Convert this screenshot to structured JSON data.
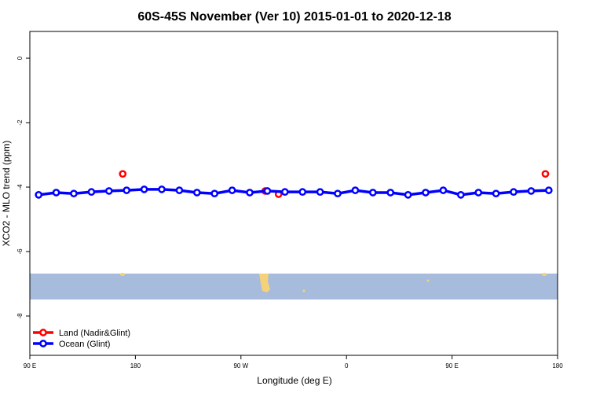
{
  "chart_data": {
    "type": "scatter-line",
    "title": "60S-45S November (Ver 10)   2015-01-01 to 2020-12-18",
    "xlabel": "Longitude (deg E)",
    "ylabel": "XCO2 - MLO trend (ppm)",
    "xlim": [
      90,
      540
    ],
    "ylim": [
      -9.22,
      0.83
    ],
    "xticks": [
      {
        "value": 90,
        "label": "90 E"
      },
      180,
      {
        "value": 270,
        "label": "90 W"
      },
      {
        "value": 360,
        "label": "0"
      },
      {
        "value": 450,
        "label": "90 E"
      },
      {
        "value": 540,
        "label": "180"
      }
    ],
    "yticks": [
      0,
      -2,
      -4,
      -6,
      -8
    ],
    "legend": "bottom-left",
    "series": [
      {
        "name": "Land (Nadir&Glint)",
        "color": "#ff0000",
        "connected": false,
        "x": [
          169.2,
          290.7,
          302.1,
          529.6
        ],
        "values": [
          -3.59,
          -4.12,
          -4.22,
          -3.59
        ]
      },
      {
        "name": "Ocean (Glint)",
        "color": "#0000ff",
        "connected": true,
        "x": [
          97.5,
          112.5,
          127.5,
          142.5,
          157.5,
          172.5,
          187.5,
          202.5,
          217.5,
          232.5,
          247.5,
          262.5,
          277.5,
          292.5,
          307.5,
          322.5,
          337.5,
          352.5,
          367.5,
          382.5,
          397.5,
          412.5,
          427.5,
          442.5,
          457.5,
          472.5,
          487.5,
          502.5,
          517.5,
          532.5
        ],
        "values": [
          -4.24,
          -4.17,
          -4.2,
          -4.15,
          -4.12,
          -4.1,
          -4.07,
          -4.07,
          -4.1,
          -4.17,
          -4.2,
          -4.1,
          -4.17,
          -4.12,
          -4.15,
          -4.15,
          -4.15,
          -4.2,
          -4.1,
          -4.17,
          -4.17,
          -4.24,
          -4.17,
          -4.1,
          -4.24,
          -4.17,
          -4.2,
          -4.15,
          -4.12,
          -4.1
        ]
      }
    ]
  }
}
